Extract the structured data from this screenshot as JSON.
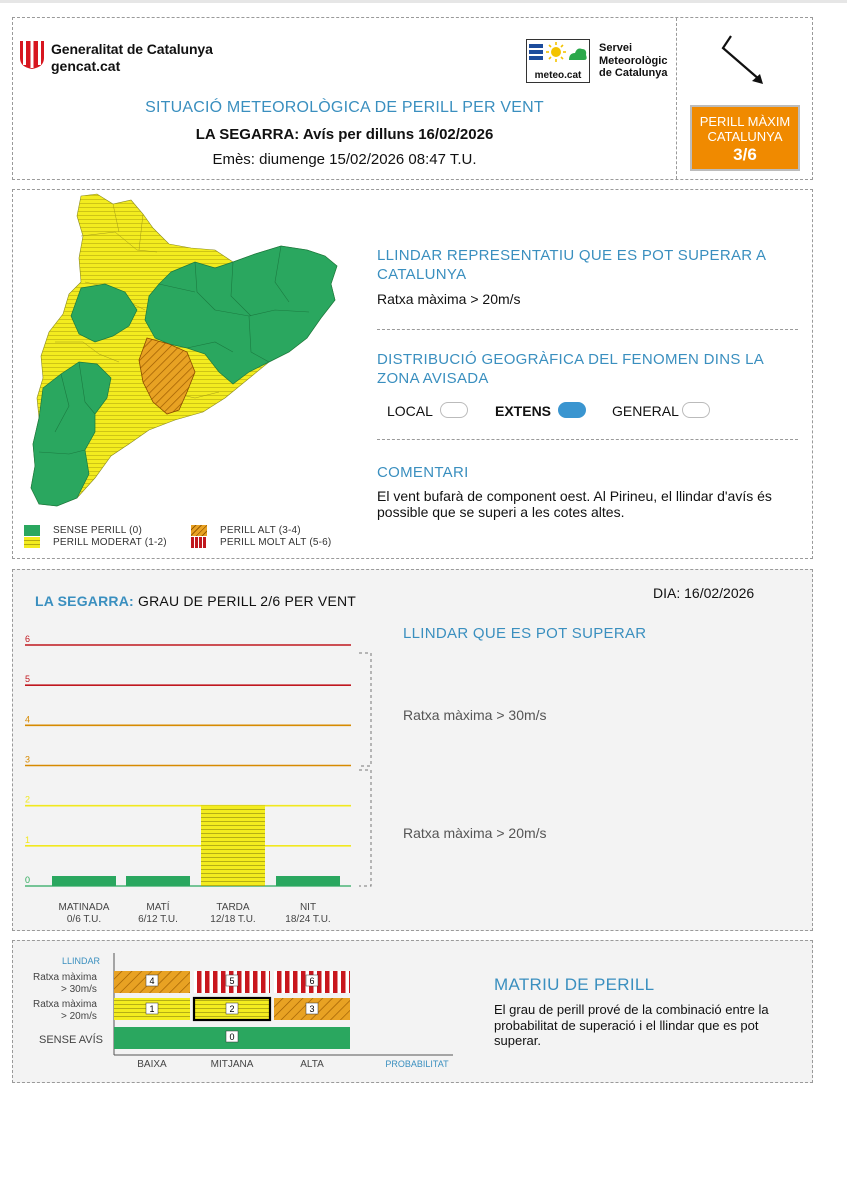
{
  "header": {
    "gov_name": "Generalitat de Catalunya",
    "gov_url": "gencat.cat",
    "meteo_label": "meteo.cat",
    "service_line1": "Servei",
    "service_line2": "Meteorològic",
    "service_line3": "de Catalunya",
    "title": "SITUACIÓ METEOROLÒGICA DE PERILL PER VENT",
    "zone_warning": "LA SEGARRA: Avís per dilluns 16/02/2026",
    "issued": "Emès: diumenge 15/02/2026 08:47 T.U.",
    "max_label1": "PERILL MÀXIM",
    "max_label2": "CATALUNYA",
    "max_value": "3/6",
    "colors": {
      "accent": "#3a8fbf",
      "max_box": "#f08a00"
    }
  },
  "map_section": {
    "legend": {
      "none": "SENSE PERILL (0)",
      "moderate": "PERILL MODERAT (1-2)",
      "high": "PERILL ALT (3-4)",
      "very_high": "PERILL MOLT ALT (5-6)"
    },
    "threshold_title": "LLINDAR REPRESENTATIU QUE ES POT SUPERAR A CATALUNYA",
    "threshold_value": "Ratxa màxima > 20m/s",
    "distribution_title": "DISTRIBUCIÓ GEOGRÀFICA DEL FENOMEN DINS LA ZONA AVISADA",
    "distribution_options": {
      "local": "LOCAL",
      "extens": "EXTENS",
      "general": "GENERAL",
      "selected": "EXTENS"
    },
    "comment_title": "COMENTARI",
    "comment_text": "El vent bufarà de component oest. Al Pirineu, el llindar d'avís és possible que se superi a les cotes altes."
  },
  "graph_section": {
    "zone": "LA SEGARRA:",
    "title_rest": "GRAU DE PERILL 2/6 PER VENT",
    "date": "DIA: 16/02/2026",
    "subtitle": "LLINDAR QUE ES POT SUPERAR",
    "threshold_high": "Ratxa màxima > 30m/s",
    "threshold_low": "Ratxa màxima > 20m/s",
    "chart_data": {
      "type": "bar",
      "categories": [
        "MATINADA",
        "MATÍ",
        "TARDA",
        "NIT"
      ],
      "category_sublabels": [
        "0/6 T.U.",
        "6/12 T.U.",
        "12/18 T.U.",
        "18/24 T.U."
      ],
      "values": [
        0,
        0,
        2,
        0
      ],
      "ylim": [
        0,
        6
      ],
      "yticks": [
        "0",
        "1",
        "2",
        "3",
        "4",
        "5",
        "6"
      ],
      "level_colors": [
        "#2daa5a",
        "#f1e81e",
        "#f1e81e",
        "#d68a00",
        "#d68a00",
        "#c0171e",
        "#c0171e"
      ]
    }
  },
  "matrix_section": {
    "axis_label": "LLINDAR",
    "row_high_1": "Ratxa màxima",
    "row_high_2": "> 30m/s",
    "row_low_1": "Ratxa màxima",
    "row_low_2": "> 20m/s",
    "row_none": "SENSE AVÍS",
    "cols": [
      "BAIXA",
      "MITJANA",
      "ALTA"
    ],
    "prob_label": "PROBABILITAT",
    "cells": {
      "r1": [
        "4",
        "5",
        "6"
      ],
      "r2": [
        "1",
        "2",
        "3"
      ],
      "r3": "0",
      "selected": "2"
    },
    "title": "MATRIU DE PERILL",
    "text": "El grau de perill prové de la combinació entre la probabilitat de superació i el llindar que es pot superar."
  }
}
